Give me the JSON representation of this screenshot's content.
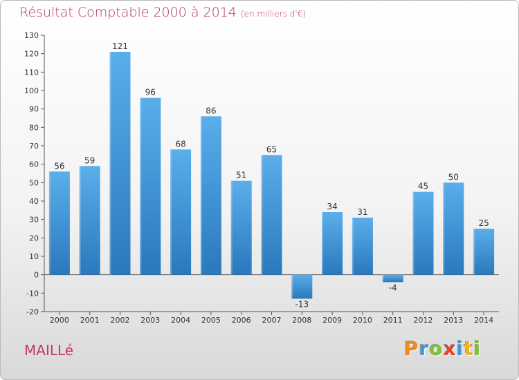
{
  "chart_data": {
    "type": "bar",
    "title": "Résultat Comptable 2000 à 2014",
    "subtitle": "(en milliers d'€)",
    "xlabel": "",
    "ylabel": "",
    "categories": [
      "2000",
      "2001",
      "2002",
      "2003",
      "2004",
      "2005",
      "2006",
      "2007",
      "2008",
      "2009",
      "2010",
      "2011",
      "2012",
      "2013",
      "2014"
    ],
    "values": [
      56,
      59,
      121,
      96,
      68,
      86,
      51,
      65,
      -13,
      34,
      31,
      -4,
      45,
      50,
      25
    ],
    "ylim": [
      -20,
      130
    ],
    "yticks": [
      -20,
      -10,
      0,
      10,
      20,
      30,
      40,
      50,
      60,
      70,
      80,
      90,
      100,
      110,
      120,
      130
    ],
    "grid": false,
    "bar_color_top": "#5aaeea",
    "bar_color_bottom": "#2a78bd"
  },
  "footer": {
    "commune": "MAILLé",
    "logo_letters": [
      "P",
      "r",
      "o",
      "x",
      "i",
      "t",
      "i"
    ],
    "logo_colors": [
      "#ef8a1e",
      "#3c9ad6",
      "#7fbf3a",
      "#e8412b",
      "#3c9ad6",
      "#f2b21b",
      "#7fbf3a"
    ]
  }
}
